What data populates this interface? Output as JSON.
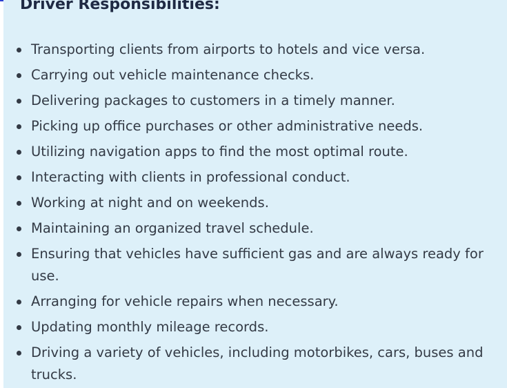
{
  "heading": "Driver Responsibilities:",
  "items": [
    "Transporting clients from airports to hotels and vice versa.",
    "Carrying out vehicle maintenance checks.",
    "Delivering packages to customers in a timely manner.",
    "Picking up office purchases or other administrative needs.",
    "Utilizing navigation apps to find the most optimal route.",
    "Interacting with clients in professional conduct.",
    "Working at night and on weekends.",
    "Maintaining an organized travel schedule.",
    "Ensuring that vehicles have sufficient gas and are always ready for use.",
    "Arranging for vehicle repairs when necessary.",
    "Updating monthly mileage records.",
    "Driving a variety of vehicles, including motorbikes, cars, buses and trucks."
  ],
  "colors": {
    "panel_background": "#ddf0f9",
    "heading_text": "#1f2a44",
    "body_text": "#333a45",
    "accent": "#2b3fd1"
  }
}
